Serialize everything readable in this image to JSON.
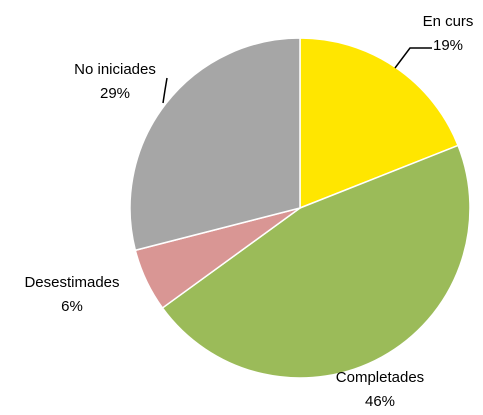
{
  "chart_data": {
    "type": "pie",
    "categories": [
      "En curs",
      "Completades",
      "Desestimades",
      "No iniciades"
    ],
    "values": [
      19,
      46,
      6,
      29
    ],
    "value_labels": [
      "19%",
      "46%",
      "6%",
      "29%"
    ],
    "colors": [
      "#FFE600",
      "#9BBB59",
      "#D99694",
      "#A6A6A6"
    ]
  }
}
